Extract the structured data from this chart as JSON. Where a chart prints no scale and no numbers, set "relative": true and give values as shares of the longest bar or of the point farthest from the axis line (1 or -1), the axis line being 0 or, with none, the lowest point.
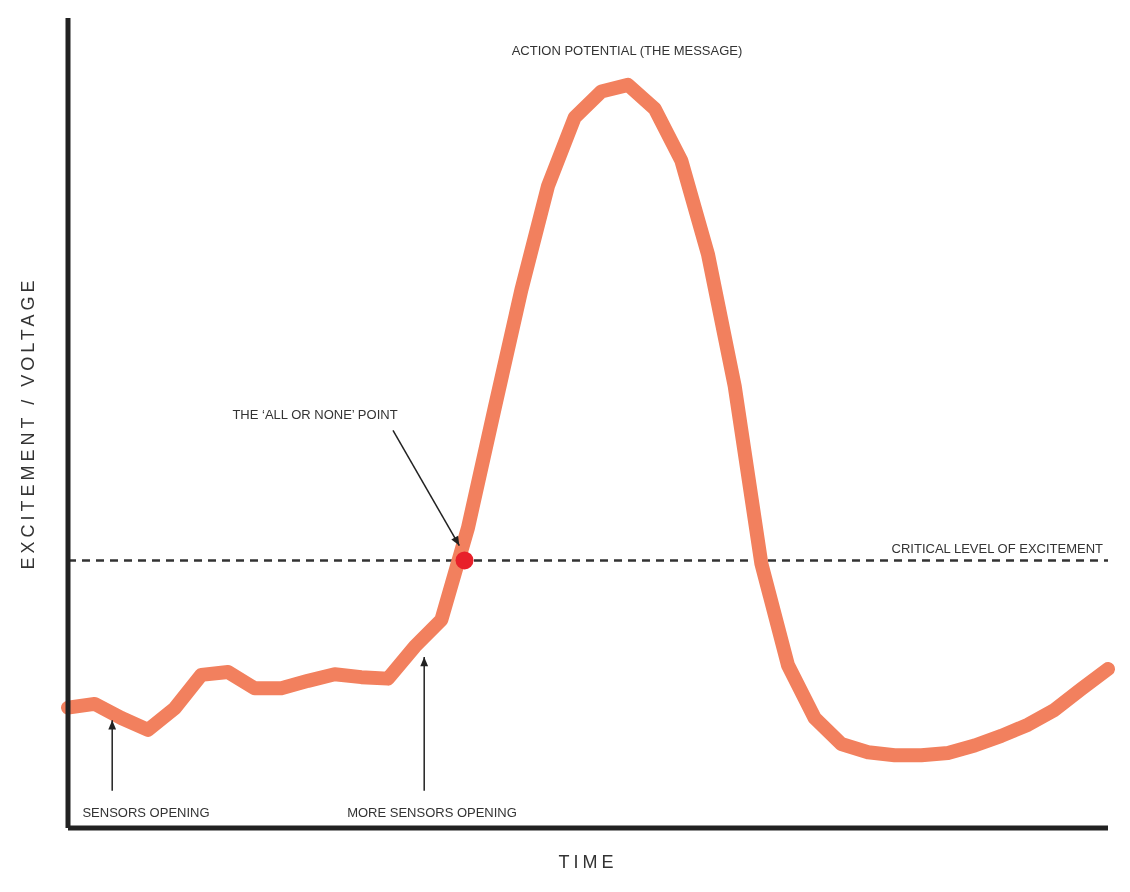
{
  "chart_data": {
    "type": "line",
    "relative": true,
    "xlabel": "TIME",
    "ylabel": "EXCITEMENT / VOLTAGE",
    "categories": [
      null,
      null,
      null,
      null,
      null,
      null,
      null,
      null,
      null,
      null,
      null,
      null,
      null,
      null,
      null,
      null,
      null,
      null,
      null,
      null,
      null,
      null,
      null,
      null,
      null,
      null,
      null,
      null,
      null,
      null,
      null,
      null,
      null,
      null,
      null,
      null,
      null,
      null,
      null,
      null
    ],
    "series": [
      {
        "color": "#f2805e",
        "values": [
          0.162,
          0.167,
          0.148,
          0.132,
          0.161,
          0.206,
          0.21,
          0.188,
          0.188,
          0.198,
          0.207,
          0.203,
          0.201,
          0.244,
          0.28,
          0.404,
          0.565,
          0.724,
          0.864,
          0.956,
          0.991,
          1,
          0.968,
          0.898,
          0.772,
          0.595,
          0.356,
          0.219,
          0.148,
          0.113,
          0.102,
          0.098,
          0.098,
          0.101,
          0.111,
          0.124,
          0.139,
          0.159,
          0.187,
          0.214
        ]
      }
    ],
    "ref_lines": [
      {
        "axis": "y",
        "value": 0.36,
        "label": "CRITICAL LEVEL OF EXCITEMENT",
        "color": "#333333",
        "line_style": "dashed"
      }
    ],
    "annotations": [
      "ACTION POTENTIAL (THE MESSAGE)",
      "THE ‘ALL OR NONE’ POINT",
      "SENSORS OPENING",
      "MORE SENSORS OPENING"
    ]
  }
}
